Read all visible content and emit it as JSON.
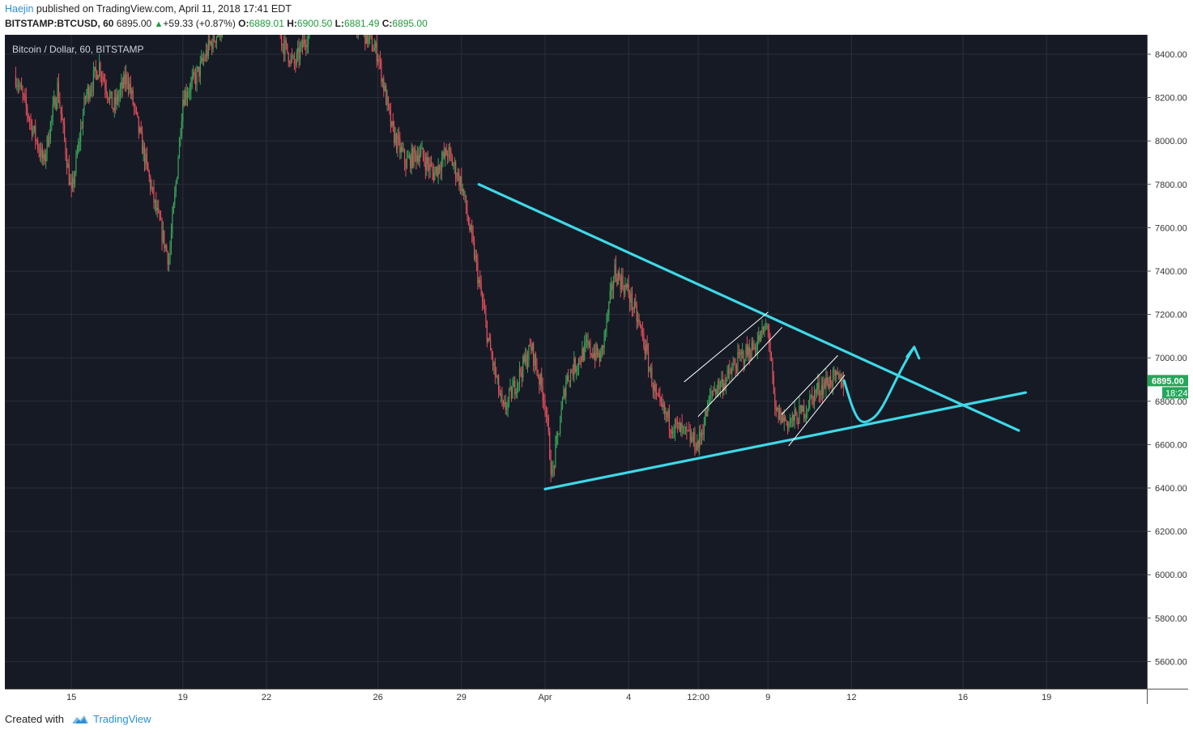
{
  "header": {
    "author": "Haejin",
    "published_text": "published on TradingView.com, April 11, 2018 17:41 EDT",
    "symbol": "BITSTAMP:BTCUSD, 60",
    "last": "6895.00",
    "change": "+59.33 (+0.87%)",
    "o_label": "O:",
    "o_value": "6889.01",
    "h_label": "H:",
    "h_value": "6900.50",
    "l_label": "L:",
    "l_value": "6881.49",
    "c_label": "C:",
    "c_value": "6895.00"
  },
  "chart_title": "Bitcoin / Dollar, 60, BITSTAMP",
  "price_badge": {
    "price": "6895.00",
    "countdown": "18:24"
  },
  "footer": {
    "created_with": "Created with",
    "brand": "TradingView"
  },
  "colors": {
    "background": "#161a25",
    "grid": "#2a2e39",
    "up": "#3aa356",
    "down": "#e34d5a",
    "trendline": "#3dd9e8",
    "channel": "#ffffff",
    "badge": "#26a65b",
    "axis_bg": "#ffffff"
  },
  "chart_data": {
    "type": "candlestick",
    "title": "Bitcoin / Dollar, 60, BITSTAMP",
    "xlabel": "",
    "ylabel": "",
    "x_range": [
      "2018-03-13 00:00",
      "2018-03-22 14:00"
    ],
    "ylim": [
      5450,
      8540
    ],
    "grid": true,
    "y_ticks": [
      8400,
      8200,
      8000,
      7800,
      7600,
      7400,
      7200,
      7000,
      6800,
      6600,
      6400,
      6200,
      6000,
      5800,
      5600
    ],
    "y_tick_labels": [
      "8400.00",
      "8200.00",
      "8000.00",
      "7800.00",
      "7600.00",
      "7400.00",
      "7200.00",
      "7000.00",
      "6800.00",
      "6600.00",
      "6400.00",
      "6200.00",
      "6000.00",
      "5800.00",
      "5600.00"
    ],
    "x_ticks": [
      {
        "t": "2018-03-15 00:00",
        "label": "15"
      },
      {
        "t": "2018-03-19 00:00",
        "label": "19"
      },
      {
        "t": "2018-03-22 00:00",
        "label": "22"
      },
      {
        "t": "2018-03-26 00:00",
        "label": "26"
      },
      {
        "t": "2018-03-29 00:00",
        "label": "29"
      },
      {
        "t": "2018-04-01 00:00",
        "label": "Apr"
      },
      {
        "t": "2018-04-04 00:00",
        "label": "4"
      },
      {
        "t": "2018-04-06 12:00",
        "label": "12:00"
      },
      {
        "t": "2018-04-09 00:00",
        "label": "9"
      },
      {
        "t": "2018-04-12 00:00",
        "label": "12"
      },
      {
        "t": "2018-04-16 00:00",
        "label": "16"
      },
      {
        "t": "2018-04-19 00:00",
        "label": "19"
      }
    ],
    "price_path": [
      [
        "2018-03-13 00:00",
        8300
      ],
      [
        "2018-03-14 00:00",
        7900
      ],
      [
        "2018-03-14 12:00",
        8250
      ],
      [
        "2018-03-15 00:00",
        7750
      ],
      [
        "2018-03-15 12:00",
        8200
      ],
      [
        "2018-03-16 00:00",
        8350
      ],
      [
        "2018-03-16 12:00",
        8150
      ],
      [
        "2018-03-17 00:00",
        8300
      ],
      [
        "2018-03-17 12:00",
        8000
      ],
      [
        "2018-03-18 00:00",
        7700
      ],
      [
        "2018-03-18 12:00",
        7450
      ],
      [
        "2018-03-18 18:00",
        7800
      ],
      [
        "2018-03-19 00:00",
        8200
      ],
      [
        "2018-03-19 12:00",
        8300
      ],
      [
        "2018-03-20 00:00",
        8450
      ],
      [
        "2018-03-20 12:00",
        8550
      ],
      [
        "2018-03-21 00:00",
        8600
      ],
      [
        "2018-03-22 00:00",
        8700
      ],
      [
        "2018-03-22 14:00",
        8450
      ],
      [
        "2018-03-23 00:00",
        8350
      ],
      [
        "2018-03-24 00:00",
        8650
      ],
      [
        "2018-03-25 00:00",
        8600
      ],
      [
        "2018-03-26 00:00",
        8400
      ],
      [
        "2018-03-26 12:00",
        8050
      ],
      [
        "2018-03-27 00:00",
        7900
      ],
      [
        "2018-03-27 12:00",
        7950
      ],
      [
        "2018-03-28 00:00",
        7850
      ],
      [
        "2018-03-28 12:00",
        7950
      ],
      [
        "2018-03-29 00:00",
        7800
      ],
      [
        "2018-03-29 12:00",
        7450
      ],
      [
        "2018-03-30 00:00",
        7050
      ],
      [
        "2018-03-30 12:00",
        6750
      ],
      [
        "2018-03-31 00:00",
        6900
      ],
      [
        "2018-03-31 12:00",
        7050
      ],
      [
        "2018-04-01 00:00",
        6800
      ],
      [
        "2018-04-01 06:00",
        6450
      ],
      [
        "2018-04-01 18:00",
        6900
      ],
      [
        "2018-04-02 12:00",
        7050
      ],
      [
        "2018-04-03 00:00",
        7000
      ],
      [
        "2018-04-03 12:00",
        7400
      ],
      [
        "2018-04-04 00:00",
        7300
      ],
      [
        "2018-04-04 12:00",
        7100
      ],
      [
        "2018-04-05 00:00",
        6800
      ],
      [
        "2018-04-05 12:00",
        6700
      ],
      [
        "2018-04-06 00:00",
        6650
      ],
      [
        "2018-04-06 12:00",
        6600
      ],
      [
        "2018-04-07 00:00",
        6850
      ],
      [
        "2018-04-07 12:00",
        6900
      ],
      [
        "2018-04-08 00:00",
        7000
      ],
      [
        "2018-04-08 12:00",
        7050
      ],
      [
        "2018-04-09 00:00",
        7150
      ],
      [
        "2018-04-09 06:00",
        6750
      ],
      [
        "2018-04-09 18:00",
        6700
      ],
      [
        "2018-04-10 06:00",
        6750
      ],
      [
        "2018-04-10 18:00",
        6850
      ],
      [
        "2018-04-11 06:00",
        6900
      ],
      [
        "2018-04-11 17:41",
        6895
      ]
    ],
    "annotations": [
      {
        "type": "trendline",
        "name": "upper-descending",
        "from": [
          "2018-03-29 15:00",
          7800
        ],
        "to": [
          "2018-04-18 00:00",
          6665
        ]
      },
      {
        "type": "trendline",
        "name": "lower-ascending",
        "from": [
          "2018-04-01 00:00",
          6395
        ],
        "to": [
          "2018-04-18 06:00",
          6840
        ]
      },
      {
        "type": "channel-line",
        "from": [
          "2018-04-06 00:00",
          6890
        ],
        "to": [
          "2018-04-09 00:00",
          7210
        ]
      },
      {
        "type": "channel-line",
        "from": [
          "2018-04-06 12:00",
          6730
        ],
        "to": [
          "2018-04-09 12:00",
          7140
        ]
      },
      {
        "type": "channel-line",
        "from": [
          "2018-04-09 12:00",
          6740
        ],
        "to": [
          "2018-04-11 12:00",
          7010
        ]
      },
      {
        "type": "channel-line",
        "from": [
          "2018-04-09 18:00",
          6595
        ],
        "to": [
          "2018-04-11 18:00",
          6920
        ]
      },
      {
        "type": "projection-arrow",
        "points": [
          [
            "2018-04-11 17:41",
            6895
          ],
          [
            "2018-04-12 04:00",
            6700
          ],
          [
            "2018-04-12 18:00",
            6720
          ],
          [
            "2018-04-13 12:00",
            6900
          ],
          [
            "2018-04-14 06:00",
            7050
          ]
        ]
      }
    ]
  }
}
